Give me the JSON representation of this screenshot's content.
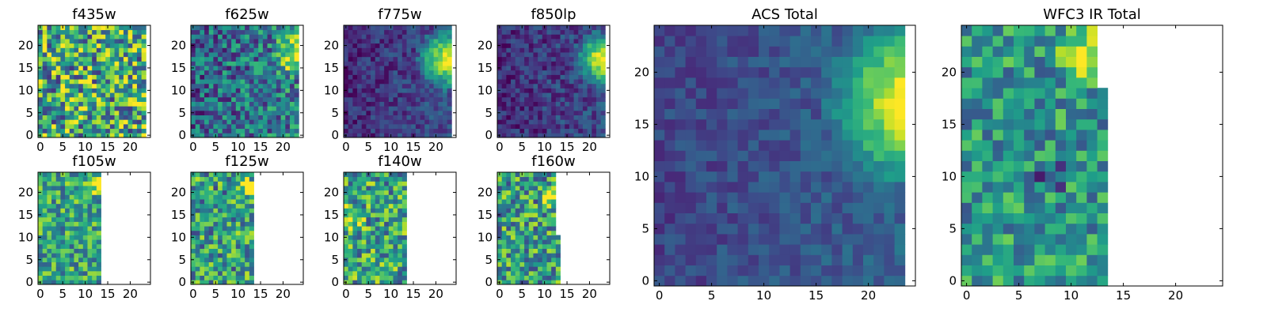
{
  "chart_data": [
    {
      "type": "heatmap",
      "title": "f435w",
      "xlim": [
        0,
        24
      ],
      "ylim": [
        0,
        24
      ],
      "xticks": [
        "0",
        "5",
        "10",
        "15",
        "20"
      ],
      "yticks": [
        "0",
        "5",
        "10",
        "15",
        "20"
      ],
      "grid_size": 24,
      "filled_columns": 24,
      "step_at": null,
      "pattern": "noisy",
      "base": 0.6,
      "noise": 0.45,
      "bright_spot": null
    },
    {
      "type": "heatmap",
      "title": "f625w",
      "xlim": [
        0,
        24
      ],
      "ylim": [
        0,
        24
      ],
      "xticks": [
        "0",
        "5",
        "10",
        "15",
        "20"
      ],
      "yticks": [
        "0",
        "5",
        "10",
        "15",
        "20"
      ],
      "grid_size": 24,
      "filled_columns": 24,
      "step_at": null,
      "pattern": "gradient",
      "base": 0.32,
      "noise": 0.3,
      "bright_spot": {
        "x": 23,
        "y": 18,
        "radius": 6,
        "strength": 0.7
      }
    },
    {
      "type": "heatmap",
      "title": "f775w",
      "xlim": [
        0,
        24
      ],
      "ylim": [
        0,
        24
      ],
      "xticks": [
        "0",
        "5",
        "10",
        "15",
        "20"
      ],
      "yticks": [
        "0",
        "5",
        "10",
        "15",
        "20"
      ],
      "grid_size": 24,
      "filled_columns": 24,
      "step_at": null,
      "pattern": "gradient",
      "base": 0.12,
      "noise": 0.14,
      "bright_spot": {
        "x": 23,
        "y": 17,
        "radius": 8,
        "strength": 0.88
      }
    },
    {
      "type": "heatmap",
      "title": "f850lp",
      "xlim": [
        0,
        24
      ],
      "ylim": [
        0,
        24
      ],
      "xticks": [
        "0",
        "5",
        "10",
        "15",
        "20"
      ],
      "yticks": [
        "0",
        "5",
        "10",
        "15",
        "20"
      ],
      "grid_size": 24,
      "filled_columns": 24,
      "step_at": null,
      "pattern": "gradient",
      "base": 0.12,
      "noise": 0.15,
      "bright_spot": {
        "x": 23,
        "y": 17,
        "radius": 7,
        "strength": 0.88
      }
    },
    {
      "type": "heatmap",
      "title": "f105w",
      "xlim": [
        0,
        24
      ],
      "ylim": [
        0,
        24
      ],
      "xticks": [
        "0",
        "5",
        "10",
        "15",
        "20"
      ],
      "yticks": [
        "0",
        "5",
        "10",
        "15",
        "20"
      ],
      "grid_size": 24,
      "filled_columns": 14,
      "step_at": null,
      "pattern": "noisy",
      "base": 0.58,
      "noise": 0.3,
      "bright_spot": {
        "x": 12,
        "y": 22,
        "radius": 3,
        "strength": 0.5
      }
    },
    {
      "type": "heatmap",
      "title": "f125w",
      "xlim": [
        0,
        24
      ],
      "ylim": [
        0,
        24
      ],
      "xticks": [
        "0",
        "5",
        "10",
        "15",
        "20"
      ],
      "yticks": [
        "0",
        "5",
        "10",
        "15",
        "20"
      ],
      "grid_size": 24,
      "filled_columns": 14,
      "step_at": null,
      "pattern": "noisy",
      "base": 0.55,
      "noise": 0.35,
      "bright_spot": {
        "x": 12,
        "y": 21,
        "radius": 3,
        "strength": 0.5
      }
    },
    {
      "type": "heatmap",
      "title": "f140w",
      "xlim": [
        0,
        24
      ],
      "ylim": [
        0,
        24
      ],
      "xticks": [
        "0",
        "5",
        "10",
        "15",
        "20"
      ],
      "yticks": [
        "0",
        "5",
        "10",
        "15",
        "20"
      ],
      "grid_size": 24,
      "filled_columns": 14,
      "step_at": null,
      "pattern": "noisy",
      "base": 0.58,
      "noise": 0.35,
      "bright_spot": {
        "x": 1,
        "y": 14,
        "radius": 4,
        "strength": 0.4
      }
    },
    {
      "type": "heatmap",
      "title": "f160w",
      "xlim": [
        0,
        24
      ],
      "ylim": [
        0,
        24
      ],
      "xticks": [
        "0",
        "5",
        "10",
        "15",
        "20"
      ],
      "yticks": [
        "0",
        "5",
        "10",
        "15",
        "20"
      ],
      "grid_size": 24,
      "filled_columns": 14,
      "step_at": {
        "row": 11,
        "columns": 13
      },
      "pattern": "noisy",
      "base": 0.55,
      "noise": 0.35,
      "bright_spot": {
        "x": 12,
        "y": 19,
        "radius": 4,
        "strength": 0.45
      }
    },
    {
      "type": "heatmap",
      "title": "ACS Total",
      "xlim": [
        0,
        24
      ],
      "ylim": [
        0,
        24
      ],
      "xticks": [
        "0",
        "5",
        "10",
        "15",
        "20"
      ],
      "yticks": [
        "0",
        "5",
        "10",
        "15",
        "20"
      ],
      "grid_size": 24,
      "filled_columns": 24,
      "step_at": null,
      "pattern": "gradient",
      "base": 0.2,
      "noise": 0.1,
      "bright_spot": {
        "x": 24,
        "y": 17,
        "radius": 9,
        "strength": 0.82
      }
    },
    {
      "type": "heatmap",
      "title": "WFC3 IR Total",
      "xlim": [
        0,
        24
      ],
      "ylim": [
        0,
        24
      ],
      "xticks": [
        "0",
        "5",
        "10",
        "15",
        "20"
      ],
      "yticks": [
        "0",
        "5",
        "10",
        "15",
        "20"
      ],
      "grid_size": 24,
      "filled_columns": 14,
      "step_at": {
        "row": 19,
        "columns": 13
      },
      "pattern": "noisy",
      "base": 0.52,
      "noise": 0.26,
      "bright_spot": {
        "x": 12,
        "y": 22,
        "radius": 4,
        "strength": 0.5
      },
      "dark_spot": {
        "x": 8,
        "y": 10,
        "radius": 2,
        "strength": 0.45
      }
    }
  ],
  "colormap": [
    "#440154",
    "#482878",
    "#3e4989",
    "#31688e",
    "#26828e",
    "#1f9e89",
    "#35b779",
    "#6ece58",
    "#b5de2b",
    "#fde725"
  ]
}
